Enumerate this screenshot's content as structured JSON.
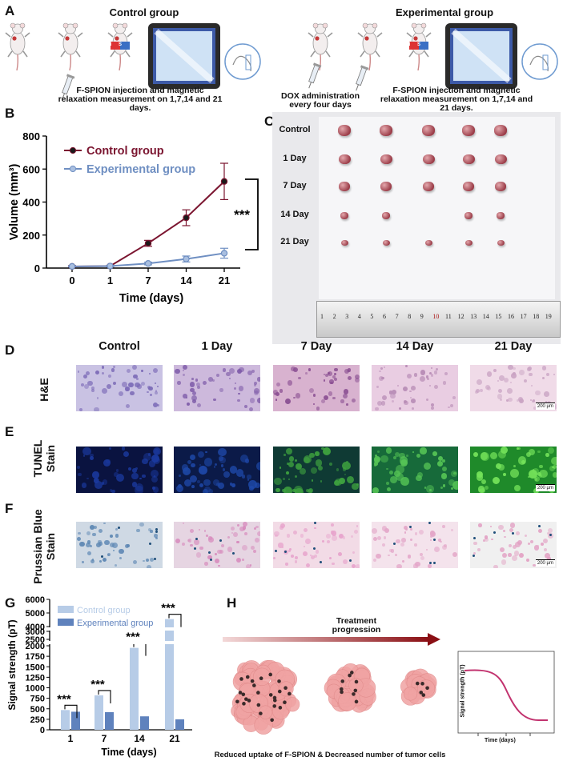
{
  "panel_a": {
    "letter": "A",
    "control_title": "Control group",
    "experimental_title": "Experimental group",
    "control_caption": "F-SPION injection and magnetic relaxation measurement on 1,7,14 and 21 days.",
    "dox_caption": "DOX administration every four days",
    "experimental_caption": "F-SPION injection and magnetic relaxation measurement on 1,7,14 and 21 days.",
    "magnet_n": "N",
    "magnet_s": "S"
  },
  "panel_b": {
    "letter": "B",
    "significance": "***",
    "colors": {
      "control": "#7b1530",
      "experimental": "#6f8fc2"
    }
  },
  "panel_c": {
    "letter": "C",
    "row_labels": [
      "Control",
      "1 Day",
      "7 Day",
      "14 Day",
      "21 Day"
    ],
    "ruler_numbers": [
      "1",
      "2",
      "3",
      "4",
      "5",
      "6",
      "7",
      "8",
      "9",
      "10",
      "11",
      "12",
      "13",
      "14",
      "15",
      "16",
      "17",
      "18",
      "19"
    ]
  },
  "panel_d": {
    "letter": "D",
    "columns": [
      "Control",
      "1 Day",
      "7 Day",
      "14 Day",
      "21 Day"
    ],
    "row_label": "H&E",
    "scale": "200 µm"
  },
  "panel_e": {
    "letter": "E",
    "row_label_1": "TUNEL",
    "row_label_2": "Stain",
    "scale": "200 µm"
  },
  "panel_f": {
    "letter": "F",
    "row_label_1": "Prussian Blue",
    "row_label_2": "Stain",
    "scale": "200 µm"
  },
  "panel_g": {
    "letter": "G",
    "colors": {
      "control": "#b7cce7",
      "experimental": "#5f82bd"
    }
  },
  "panel_h": {
    "letter": "H",
    "arrow_label": "Treatment progression",
    "caption": "Reduced uptake of F-SPION & Decreased number of tumor cells",
    "inset_ylabel": "Signal strength (pT)",
    "inset_xlabel": "Time (days)"
  },
  "chart_data": [
    {
      "type": "line",
      "panel": "B",
      "x": [
        "0",
        "1",
        "7",
        "14",
        "21"
      ],
      "series": [
        {
          "name": "Control group",
          "values": [
            10,
            12,
            150,
            305,
            525
          ],
          "error": [
            5,
            5,
            18,
            48,
            110
          ]
        },
        {
          "name": "Experimental group",
          "values": [
            10,
            12,
            28,
            55,
            90
          ],
          "error": [
            3,
            4,
            8,
            18,
            30
          ]
        }
      ],
      "xlabel": "Time (days)",
      "ylabel": "Volume (mm³)",
      "ylim": [
        0,
        800
      ],
      "yticks": [
        "0",
        "200",
        "400",
        "600",
        "800"
      ],
      "legend": "top-left"
    },
    {
      "type": "bar",
      "panel": "G",
      "categories": [
        "1",
        "7",
        "14",
        "21"
      ],
      "series": [
        {
          "name": "Control group",
          "values": [
            470,
            820,
            1950,
            4550
          ]
        },
        {
          "name": "Experimental group",
          "values": [
            430,
            420,
            320,
            250
          ]
        }
      ],
      "significance": [
        "***",
        "***",
        "***",
        "***"
      ],
      "xlabel": "Time (days)",
      "ylabel": "Signal strength (pT)",
      "yticks": [
        "0",
        "250",
        "500",
        "750",
        "1000",
        "1250",
        "1500",
        "1750",
        "2000",
        "2500",
        "3000",
        "4000",
        "5000",
        "6000"
      ],
      "broken_axis": true,
      "legend": "top-left"
    },
    {
      "type": "line",
      "panel": "H-inset",
      "xlabel": "Time (days)",
      "ylabel": "Signal strength (pT)"
    }
  ]
}
